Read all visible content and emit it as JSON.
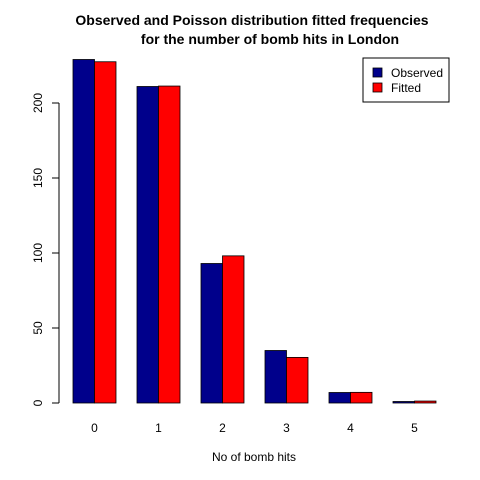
{
  "chart_data": {
    "type": "bar",
    "title_line1": "Observed and Poisson distribution fitted frequencies",
    "title_line2": "for the number of bomb hits in London",
    "xlabel": "No of bomb hits",
    "ylabel": "",
    "categories": [
      "0",
      "1",
      "2",
      "3",
      "4",
      "5"
    ],
    "ylim": [
      0,
      230
    ],
    "yticks": [
      "0",
      "50",
      "100",
      "150",
      "200"
    ],
    "series": [
      {
        "name": "Observed",
        "color": "#00008B",
        "values": [
          229,
          211,
          93,
          35,
          7,
          1
        ]
      },
      {
        "name": "Fitted",
        "color": "#FF0000",
        "values": [
          227.5,
          211.3,
          98.1,
          30.4,
          7.1,
          1.3
        ]
      }
    ],
    "legend_position": "top-right",
    "grid": false
  }
}
